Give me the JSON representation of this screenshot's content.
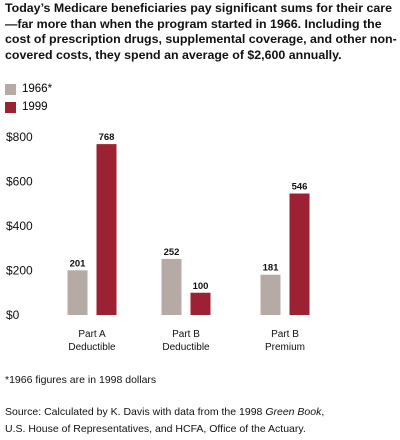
{
  "intro": "Today’s Medicare beneficiaries pay significant sums for their care—far more than when the program started in 1966. Including the cost of prescription drugs, supplemental coverage, and other non-covered costs, they spend an average of $2,600 annually.",
  "colors": {
    "series_1966": "#b6aba4",
    "series_1999": "#9c2233"
  },
  "chart_data": {
    "type": "bar",
    "categories": [
      [
        "Part A",
        "Deductible"
      ],
      [
        "Part B",
        "Deductible"
      ],
      [
        "Part B",
        "Premium"
      ]
    ],
    "series": [
      {
        "name": "1966*",
        "values": [
          201,
          252,
          181
        ]
      },
      {
        "name": "1999",
        "values": [
          768,
          100,
          546
        ]
      }
    ],
    "yticks": [
      "$0",
      "$200",
      "$400",
      "$600",
      "$800"
    ],
    "ylim": [
      0,
      800
    ],
    "grid": false,
    "legend_position": "top-left"
  },
  "footnote": "*1966 figures are in 1998 dollars",
  "source": {
    "prefix": "Source: Calculated by K. Davis with data from the 1998 ",
    "italic": "Green Book",
    "suffix": ",",
    "line2": "U.S. House of Representatives, and HCFA, Office of the Actuary."
  }
}
